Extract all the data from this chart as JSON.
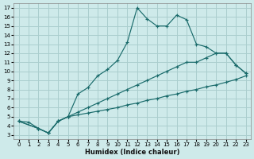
{
  "xlabel": "Humidex (Indice chaleur)",
  "bg_color": "#ceeaea",
  "grid_color": "#aacece",
  "line_color": "#1a6b6b",
  "xlim": [
    -0.5,
    23.5
  ],
  "ylim": [
    2.5,
    17.5
  ],
  "xticks": [
    0,
    1,
    2,
    3,
    4,
    5,
    6,
    7,
    8,
    9,
    10,
    11,
    12,
    13,
    14,
    15,
    16,
    17,
    18,
    19,
    20,
    21,
    22,
    23
  ],
  "yticks": [
    3,
    4,
    5,
    6,
    7,
    8,
    9,
    10,
    11,
    12,
    13,
    14,
    15,
    16,
    17
  ],
  "line1_x": [
    0,
    1,
    2,
    3,
    4,
    5,
    6,
    7,
    8,
    9,
    10,
    11,
    12,
    13,
    14,
    15,
    16,
    17,
    18,
    19,
    20,
    21,
    22,
    23
  ],
  "line1_y": [
    4.5,
    4.4,
    3.7,
    3.2,
    4.5,
    5.0,
    7.5,
    8.2,
    9.5,
    10.2,
    11.2,
    13.2,
    17.0,
    15.8,
    15.0,
    15.0,
    16.2,
    15.7,
    13.0,
    12.7,
    12.0,
    12.0,
    10.7,
    9.8
  ],
  "line2_x": [
    0,
    2,
    3,
    4,
    5,
    6,
    7,
    8,
    9,
    10,
    11,
    12,
    13,
    14,
    15,
    16,
    17,
    18,
    19,
    20,
    21,
    22,
    23
  ],
  "line2_y": [
    4.5,
    3.7,
    3.2,
    4.5,
    5.0,
    5.5,
    6.0,
    6.5,
    7.0,
    7.5,
    8.0,
    8.5,
    9.0,
    9.5,
    10.0,
    10.5,
    11.0,
    11.0,
    11.5,
    12.0,
    12.0,
    10.7,
    9.8
  ],
  "line3_x": [
    0,
    2,
    3,
    4,
    5,
    6,
    7,
    8,
    9,
    10,
    11,
    12,
    13,
    14,
    15,
    16,
    17,
    18,
    19,
    20,
    21,
    22,
    23
  ],
  "line3_y": [
    4.5,
    3.7,
    3.2,
    4.5,
    5.0,
    5.2,
    5.4,
    5.6,
    5.8,
    6.0,
    6.3,
    6.5,
    6.8,
    7.0,
    7.3,
    7.5,
    7.8,
    8.0,
    8.3,
    8.5,
    8.8,
    9.1,
    9.5
  ]
}
